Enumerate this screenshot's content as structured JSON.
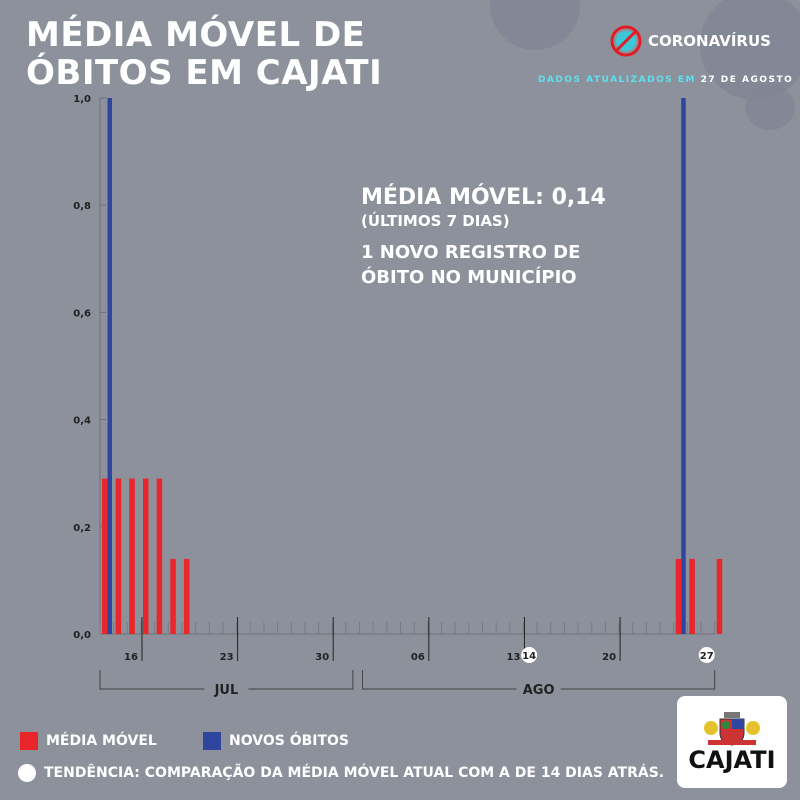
{
  "title_lines": [
    "MÉDIA MÓVEL DE",
    "ÓBITOS EM CAJATI"
  ],
  "header": {
    "brand": "CORONAVÍRUS",
    "updated_prefix": "DADOS ATUALIZADOS EM",
    "updated_date": "27 DE AGOSTO"
  },
  "stats": {
    "moving_avg": "MÉDIA MÓVEL: 0,14",
    "period": "(ÚLTIMOS 7 DIAS)",
    "new_records": "1 NOVO REGISTRO DE ÓBITO NO MUNICÍPIO"
  },
  "legend": {
    "moving_avg": "MÉDIA MÓVEL",
    "new_deaths": "NOVOS ÓBITOS",
    "trend": "TENDÊNCIA: COMPARAÇÃO DA MÉDIA MÓVEL ATUAL COM A DE 14 DIAS ATRÁS."
  },
  "logo": {
    "name": "CAJATI"
  },
  "colors": {
    "moving_avg": "#e8262b",
    "new_deaths": "#2f46a0"
  },
  "chart_data": {
    "type": "bar",
    "x_start": "13/07",
    "days": 46,
    "ylim": [
      0,
      1.0
    ],
    "y_ticks": [
      "0,0",
      "0,2",
      "0,4",
      "0,6",
      "0,8",
      "1,0"
    ],
    "x_ticks": [
      {
        "day": 3,
        "label": "16"
      },
      {
        "day": 10,
        "label": "23"
      },
      {
        "day": 17,
        "label": "30"
      },
      {
        "day": 24,
        "label": "06"
      },
      {
        "day": 31,
        "label": "13"
      },
      {
        "day": 38,
        "label": "20"
      }
    ],
    "x_highlights": [
      {
        "day": 32,
        "label": "14"
      },
      {
        "day": 45,
        "label": "27"
      }
    ],
    "months": [
      {
        "label": "JUL",
        "from": 0,
        "to": 18
      },
      {
        "label": "AGO",
        "from": 19,
        "to": 45
      }
    ],
    "series": [
      {
        "name": "MÉDIA MÓVEL",
        "points": [
          [
            0,
            0.29
          ],
          [
            1,
            0.29
          ],
          [
            2,
            0.29
          ],
          [
            3,
            0.29
          ],
          [
            4,
            0.29
          ],
          [
            5,
            0.14
          ],
          [
            6,
            0.14
          ],
          [
            42,
            0.14
          ],
          [
            43,
            0.14
          ],
          [
            45,
            0.14
          ]
        ]
      },
      {
        "name": "NOVOS ÓBITOS",
        "points": [
          [
            0,
            1
          ],
          [
            42,
            1
          ]
        ]
      }
    ]
  }
}
